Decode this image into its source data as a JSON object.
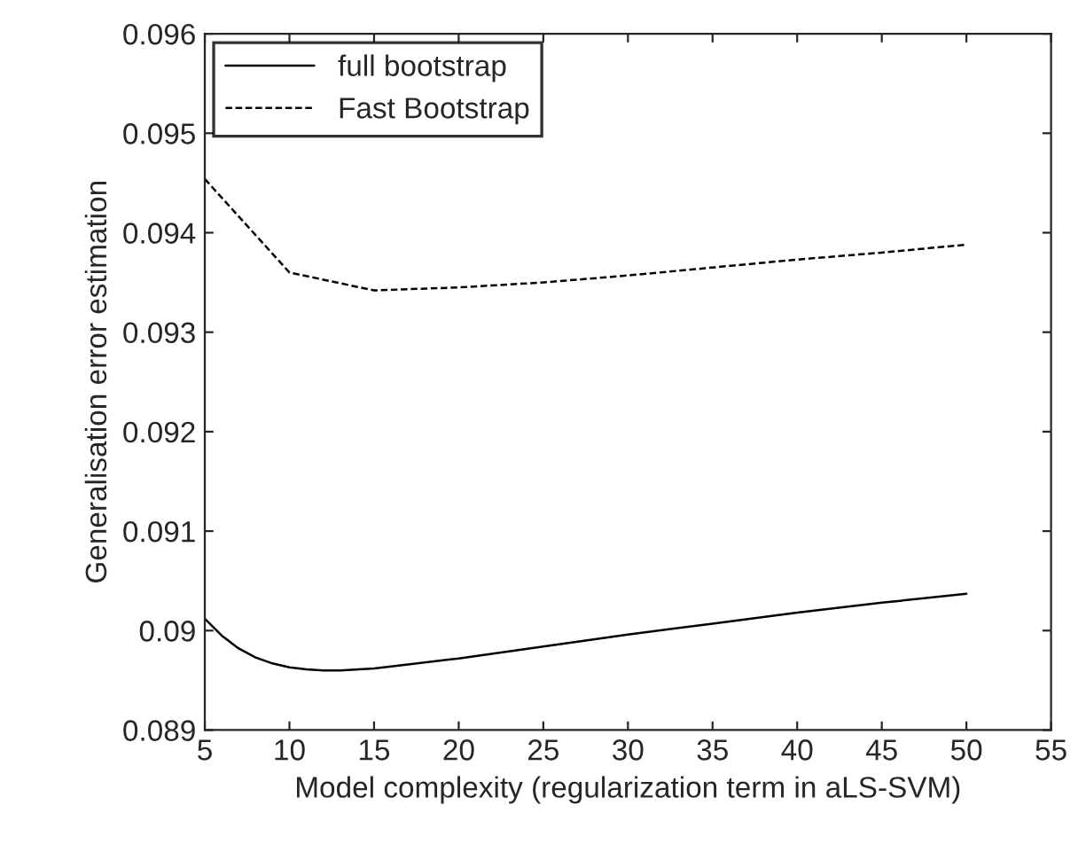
{
  "chart_data": {
    "type": "line",
    "xlabel": "Model complexity (regularization term in aLS-SVM)",
    "ylabel": "Generalisation error estimation",
    "xlim": [
      5,
      55
    ],
    "xticks": [
      5,
      10,
      15,
      20,
      25,
      30,
      35,
      40,
      45,
      50,
      55
    ],
    "ylim": [
      0.089,
      0.096
    ],
    "yticks": [
      0.089,
      0.09,
      0.091,
      0.092,
      0.093,
      0.094,
      0.095,
      0.096
    ],
    "legend": "top left",
    "grid": false,
    "series": [
      {
        "name": "full bootstrap",
        "color": "#000000",
        "line_style": "solid",
        "x": [
          5,
          6,
          7,
          8,
          9,
          10,
          11,
          12,
          13,
          15,
          17,
          20,
          25,
          30,
          35,
          40,
          45,
          50
        ],
        "values": [
          0.09012,
          0.08995,
          0.08982,
          0.08973,
          0.08967,
          0.08963,
          0.08961,
          0.0896,
          0.0896,
          0.08962,
          0.08966,
          0.08972,
          0.08984,
          0.08996,
          0.09007,
          0.09018,
          0.09028,
          0.09037
        ]
      },
      {
        "name": "Fast Bootstrap",
        "color": "#000000",
        "line_style": "dashed",
        "x": [
          5,
          10,
          15,
          20,
          25,
          30,
          35,
          40,
          45,
          50
        ],
        "values": [
          0.09454,
          0.0936,
          0.09342,
          0.09345,
          0.0935,
          0.09357,
          0.09365,
          0.09373,
          0.0938,
          0.09388
        ]
      }
    ]
  }
}
